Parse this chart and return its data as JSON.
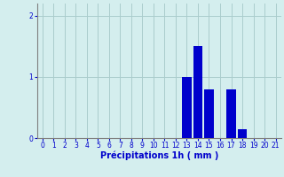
{
  "categories": [
    0,
    1,
    2,
    3,
    4,
    5,
    6,
    7,
    8,
    9,
    10,
    11,
    12,
    13,
    14,
    15,
    16,
    17,
    18,
    19,
    20,
    21
  ],
  "values": [
    0,
    0,
    0,
    0,
    0,
    0,
    0,
    0,
    0,
    0,
    0,
    0,
    0,
    1.0,
    1.5,
    0.8,
    0,
    0.8,
    0.15,
    0,
    0,
    0
  ],
  "bar_color": "#0000cc",
  "background_color": "#d4eeee",
  "grid_color": "#aacccc",
  "xlabel": "Précipitations 1h ( mm )",
  "xlim": [
    -0.5,
    21.5
  ],
  "ylim": [
    0,
    2.2
  ],
  "yticks": [
    0,
    1,
    2
  ],
  "xticks": [
    0,
    1,
    2,
    3,
    4,
    5,
    6,
    7,
    8,
    9,
    10,
    11,
    12,
    13,
    14,
    15,
    16,
    17,
    18,
    19,
    20,
    21
  ],
  "xlabel_color": "#0000cc",
  "tick_color": "#0000cc",
  "axis_label_fontsize": 7,
  "tick_fontsize": 5.5,
  "fig_width": 3.2,
  "fig_height": 2.0,
  "dpi": 100
}
